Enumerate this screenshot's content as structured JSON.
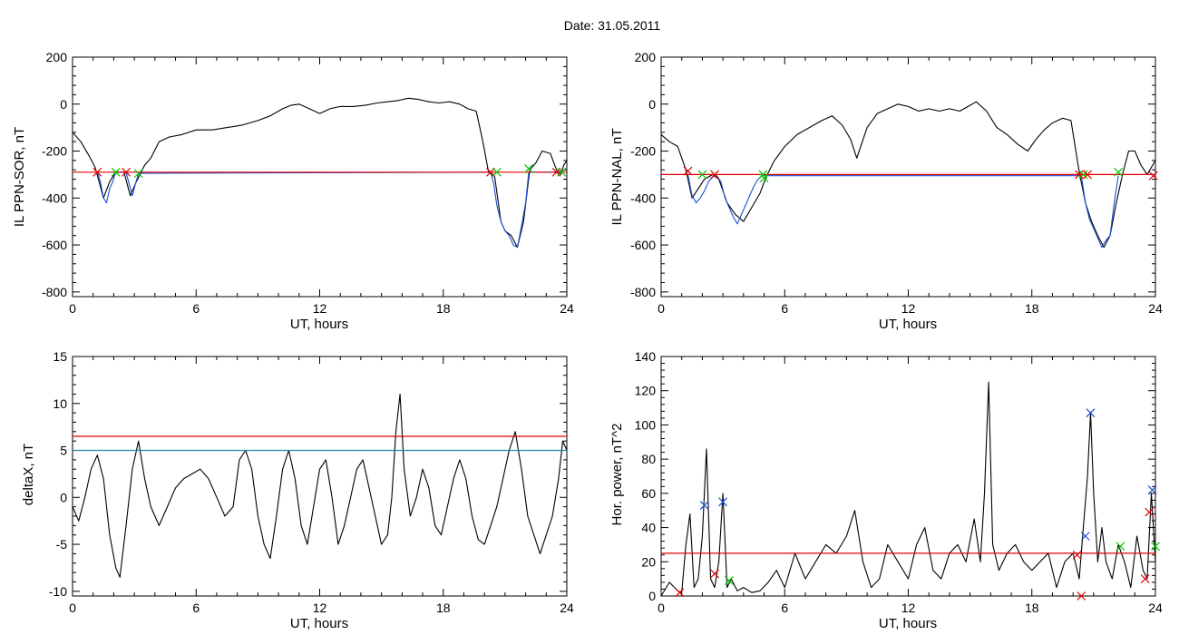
{
  "figure": {
    "title": "Date:  31.05.2011"
  },
  "chart_data": [
    {
      "type": "line",
      "xlabel": "UT, hours",
      "ylabel": "IL PPN-SOR, nT",
      "xlim": [
        0,
        24
      ],
      "ylim": [
        -820,
        200
      ],
      "xticks": [
        0,
        6,
        12,
        18,
        24
      ],
      "yticks": [
        -800,
        -600,
        -400,
        -200,
        0,
        200
      ],
      "grid": false,
      "series": [
        {
          "color": "#000000",
          "x": [
            0.0,
            0.4,
            0.8,
            1.1,
            1.5,
            1.8,
            2.1,
            2.5,
            2.8,
            3.1,
            3.5,
            3.8,
            4.2,
            4.7,
            5.3,
            6.0,
            6.8,
            7.5,
            8.2,
            9.0,
            9.6,
            10.2,
            10.6,
            11.0,
            11.5,
            12.0,
            12.5,
            13.0,
            13.6,
            14.2,
            14.8,
            15.3,
            15.8,
            16.3,
            16.8,
            17.3,
            17.8,
            18.3,
            18.8,
            19.2,
            19.6,
            19.9,
            20.2,
            20.5,
            20.8,
            21.0,
            21.3,
            21.6,
            21.9,
            22.2,
            22.5,
            22.8,
            23.2,
            23.5,
            23.7,
            23.85,
            24.0
          ],
          "y": [
            -120,
            -160,
            -220,
            -270,
            -400,
            -330,
            -290,
            -290,
            -390,
            -330,
            -260,
            -230,
            -160,
            -140,
            -130,
            -110,
            -110,
            -100,
            -90,
            -70,
            -50,
            -20,
            -5,
            0,
            -20,
            -40,
            -20,
            -10,
            -10,
            -5,
            5,
            10,
            15,
            25,
            20,
            10,
            5,
            10,
            0,
            -20,
            -30,
            -150,
            -290,
            -310,
            -500,
            -540,
            -560,
            -610,
            -500,
            -280,
            -250,
            -200,
            -210,
            -280,
            -300,
            -260,
            -240
          ]
        },
        {
          "color": "#1a4fd6",
          "x": [
            1.2,
            1.35,
            1.5,
            1.65,
            1.8,
            1.95,
            2.1,
            2.6,
            2.75,
            2.9,
            3.05,
            3.2,
            20.3,
            20.45,
            20.6,
            20.8,
            21.0,
            21.2,
            21.4,
            21.6,
            21.8,
            22.0,
            22.15,
            23.5,
            23.6,
            23.7
          ],
          "y": [
            -290,
            -330,
            -400,
            -420,
            -360,
            -330,
            -290,
            -290,
            -340,
            -390,
            -340,
            -295,
            -290,
            -340,
            -430,
            -500,
            -540,
            -560,
            -600,
            -610,
            -520,
            -420,
            -290,
            -290,
            -300,
            -280
          ]
        }
      ],
      "reference_lines": [
        {
          "y": -290,
          "color": "#e00000"
        }
      ],
      "markers": [
        {
          "x": 1.2,
          "y": -290,
          "color": "#e00000"
        },
        {
          "x": 2.1,
          "y": -290,
          "color": "#00c800"
        },
        {
          "x": 2.6,
          "y": -290,
          "color": "#e00000"
        },
        {
          "x": 3.2,
          "y": -295,
          "color": "#00c800"
        },
        {
          "x": 20.3,
          "y": -290,
          "color": "#e00000"
        },
        {
          "x": 20.6,
          "y": -290,
          "color": "#00c800"
        },
        {
          "x": 22.15,
          "y": -275,
          "color": "#00c800"
        },
        {
          "x": 23.5,
          "y": -290,
          "color": "#e00000"
        },
        {
          "x": 23.75,
          "y": -290,
          "color": "#00c800"
        }
      ]
    },
    {
      "type": "line",
      "xlabel": "UT, hours",
      "ylabel": "IL PPN-NAL, nT",
      "xlim": [
        0,
        24
      ],
      "ylim": [
        -820,
        200
      ],
      "xticks": [
        0,
        6,
        12,
        18,
        24
      ],
      "yticks": [
        -800,
        -600,
        -400,
        -200,
        0,
        200
      ],
      "grid": false,
      "series": [
        {
          "color": "#000000",
          "x": [
            0.0,
            0.4,
            0.8,
            1.2,
            1.5,
            1.8,
            2.1,
            2.5,
            2.8,
            3.2,
            3.6,
            4.0,
            4.4,
            4.8,
            5.1,
            5.5,
            6.0,
            6.6,
            7.2,
            7.8,
            8.3,
            8.8,
            9.2,
            9.5,
            10.0,
            10.5,
            11.0,
            11.5,
            12.0,
            12.5,
            13.0,
            13.5,
            14.0,
            14.5,
            15.0,
            15.3,
            15.8,
            16.3,
            16.8,
            17.3,
            17.8,
            18.2,
            18.6,
            19.0,
            19.5,
            19.9,
            20.3,
            20.6,
            20.9,
            21.2,
            21.5,
            21.8,
            22.1,
            22.4,
            22.7,
            23.0,
            23.3,
            23.6,
            24.0
          ],
          "y": [
            -130,
            -160,
            -180,
            -280,
            -400,
            -360,
            -320,
            -300,
            -320,
            -420,
            -470,
            -500,
            -440,
            -380,
            -310,
            -240,
            -180,
            -130,
            -100,
            -70,
            -50,
            -90,
            -150,
            -230,
            -100,
            -40,
            -20,
            0,
            -10,
            -30,
            -20,
            -30,
            -20,
            -30,
            -5,
            10,
            -30,
            -100,
            -130,
            -170,
            -200,
            -150,
            -110,
            -80,
            -60,
            -70,
            -290,
            -420,
            -500,
            -560,
            -610,
            -560,
            -420,
            -300,
            -200,
            -200,
            -260,
            -300,
            -240
          ]
        },
        {
          "color": "#1a4fd6",
          "x": [
            1.3,
            1.5,
            1.7,
            1.9,
            2.1,
            2.3,
            2.5,
            2.7,
            2.9,
            3.1,
            3.3,
            3.5,
            3.7,
            3.9,
            4.1,
            4.3,
            4.5,
            4.7,
            4.9,
            20.4,
            20.6,
            20.8,
            21.0,
            21.2,
            21.4,
            21.6,
            21.8,
            22.0,
            22.2
          ],
          "y": [
            -300,
            -390,
            -420,
            -400,
            -370,
            -330,
            -310,
            -305,
            -330,
            -400,
            -440,
            -480,
            -510,
            -470,
            -430,
            -390,
            -350,
            -320,
            -305,
            -305,
            -420,
            -490,
            -530,
            -570,
            -610,
            -580,
            -560,
            -420,
            -305
          ]
        }
      ],
      "reference_lines": [
        {
          "y": -300,
          "color": "#e00000"
        }
      ],
      "markers": [
        {
          "x": 1.3,
          "y": -285,
          "color": "#e00000"
        },
        {
          "x": 2.0,
          "y": -300,
          "color": "#00c800"
        },
        {
          "x": 2.6,
          "y": -300,
          "color": "#e00000"
        },
        {
          "x": 4.95,
          "y": -300,
          "color": "#00c800"
        },
        {
          "x": 5.0,
          "y": -315,
          "color": "#00c800"
        },
        {
          "x": 20.3,
          "y": -300,
          "color": "#e00000"
        },
        {
          "x": 20.5,
          "y": -300,
          "color": "#00c800"
        },
        {
          "x": 20.7,
          "y": -300,
          "color": "#e00000"
        },
        {
          "x": 22.2,
          "y": -290,
          "color": "#00c800"
        },
        {
          "x": 23.9,
          "y": -305,
          "color": "#e00000"
        }
      ]
    },
    {
      "type": "line",
      "xlabel": "UT, hours",
      "ylabel": "deltaX, nT",
      "xlim": [
        0,
        24
      ],
      "ylim": [
        -10.5,
        15
      ],
      "xticks": [
        0,
        6,
        12,
        18,
        24
      ],
      "yticks": [
        -10,
        -5,
        0,
        5,
        10,
        15
      ],
      "grid": false,
      "series": [
        {
          "color": "#000000",
          "x": [
            0.0,
            0.3,
            0.6,
            0.9,
            1.2,
            1.5,
            1.8,
            2.1,
            2.3,
            2.6,
            2.9,
            3.2,
            3.5,
            3.8,
            4.2,
            4.6,
            5.0,
            5.4,
            5.8,
            6.2,
            6.6,
            7.0,
            7.4,
            7.8,
            8.1,
            8.4,
            8.7,
            9.0,
            9.3,
            9.6,
            9.9,
            10.2,
            10.5,
            10.8,
            11.1,
            11.4,
            11.7,
            12.0,
            12.3,
            12.6,
            12.9,
            13.2,
            13.5,
            13.8,
            14.1,
            14.4,
            14.7,
            15.0,
            15.3,
            15.5,
            15.7,
            15.9,
            16.1,
            16.4,
            16.7,
            17.0,
            17.3,
            17.6,
            17.9,
            18.2,
            18.5,
            18.8,
            19.1,
            19.4,
            19.7,
            20.0,
            20.3,
            20.6,
            20.9,
            21.2,
            21.5,
            21.8,
            22.1,
            22.4,
            22.7,
            23.0,
            23.3,
            23.6,
            23.8,
            24.0
          ],
          "y": [
            -1,
            -2.5,
            0,
            3,
            4.5,
            2,
            -4,
            -7.5,
            -8.5,
            -3,
            3,
            6,
            2,
            -1,
            -3,
            -1,
            1,
            2,
            2.5,
            3,
            2,
            0,
            -2,
            -1,
            4,
            5,
            3,
            -2,
            -5,
            -6.5,
            -2,
            3,
            5,
            2,
            -3,
            -5,
            -1,
            3,
            4,
            0,
            -5,
            -3,
            0,
            3,
            4,
            1,
            -2,
            -5,
            -4,
            0,
            7,
            11,
            3,
            -2,
            0,
            3,
            1,
            -3,
            -4,
            -1,
            2,
            4,
            2,
            -2,
            -4.5,
            -5,
            -3,
            -1,
            2,
            5,
            7,
            3,
            -2,
            -4,
            -6,
            -4,
            -2,
            2,
            6,
            5
          ]
        }
      ],
      "reference_lines": [
        {
          "y": 6.5,
          "color": "#e00000"
        },
        {
          "y": 5.0,
          "color": "#1a8fa0"
        }
      ],
      "markers": []
    },
    {
      "type": "line",
      "xlabel": "UT, hours",
      "ylabel": "Hor. power, nT^2",
      "xlim": [
        0,
        24
      ],
      "ylim": [
        0,
        140
      ],
      "xticks": [
        0,
        6,
        12,
        18,
        24
      ],
      "yticks": [
        0,
        20,
        40,
        60,
        80,
        100,
        120,
        140
      ],
      "grid": false,
      "series": [
        {
          "color": "#000000",
          "x": [
            0.0,
            0.4,
            0.8,
            1.0,
            1.2,
            1.4,
            1.6,
            1.8,
            2.0,
            2.2,
            2.4,
            2.6,
            2.8,
            3.0,
            3.2,
            3.4,
            3.7,
            4.0,
            4.4,
            4.8,
            5.2,
            5.6,
            6.0,
            6.5,
            7.0,
            7.5,
            8.0,
            8.5,
            9.0,
            9.4,
            9.8,
            10.2,
            10.6,
            11.0,
            11.5,
            12.0,
            12.4,
            12.8,
            13.2,
            13.6,
            14.0,
            14.4,
            14.8,
            15.2,
            15.5,
            15.7,
            15.9,
            16.1,
            16.4,
            16.8,
            17.2,
            17.6,
            18.0,
            18.4,
            18.8,
            19.2,
            19.6,
            20.0,
            20.3,
            20.5,
            20.7,
            20.85,
            21.0,
            21.2,
            21.4,
            21.6,
            21.9,
            22.2,
            22.5,
            22.8,
            23.1,
            23.4,
            23.6,
            23.8,
            24.0
          ],
          "y": [
            0,
            8,
            3,
            2,
            30,
            48,
            5,
            10,
            35,
            86,
            10,
            5,
            20,
            60,
            5,
            10,
            3,
            5,
            2,
            3,
            8,
            15,
            5,
            25,
            10,
            20,
            30,
            25,
            35,
            50,
            20,
            5,
            10,
            30,
            20,
            10,
            30,
            40,
            15,
            10,
            25,
            30,
            20,
            45,
            20,
            60,
            125,
            30,
            15,
            25,
            30,
            20,
            15,
            20,
            25,
            5,
            20,
            25,
            10,
            40,
            70,
            107,
            60,
            20,
            40,
            20,
            10,
            30,
            20,
            5,
            35,
            15,
            10,
            60,
            20
          ]
        }
      ],
      "reference_lines": [
        {
          "y": 25,
          "color": "#e00000"
        }
      ],
      "markers": [
        {
          "x": 0.9,
          "y": 2,
          "color": "#e00000"
        },
        {
          "x": 2.1,
          "y": 53,
          "color": "#1a4fd6"
        },
        {
          "x": 2.6,
          "y": 13,
          "color": "#e00000"
        },
        {
          "x": 3.0,
          "y": 55,
          "color": "#1a4fd6"
        },
        {
          "x": 3.3,
          "y": 9,
          "color": "#00c800"
        },
        {
          "x": 20.2,
          "y": 24,
          "color": "#e00000"
        },
        {
          "x": 20.4,
          "y": 0,
          "color": "#e00000"
        },
        {
          "x": 20.6,
          "y": 35,
          "color": "#1a4fd6"
        },
        {
          "x": 20.85,
          "y": 107,
          "color": "#1a4fd6"
        },
        {
          "x": 22.3,
          "y": 29,
          "color": "#00c800"
        },
        {
          "x": 23.5,
          "y": 10,
          "color": "#e00000"
        },
        {
          "x": 23.7,
          "y": 49,
          "color": "#e00000"
        },
        {
          "x": 23.85,
          "y": 62,
          "color": "#1a4fd6"
        },
        {
          "x": 24.0,
          "y": 29,
          "color": "#00c800"
        }
      ]
    }
  ]
}
